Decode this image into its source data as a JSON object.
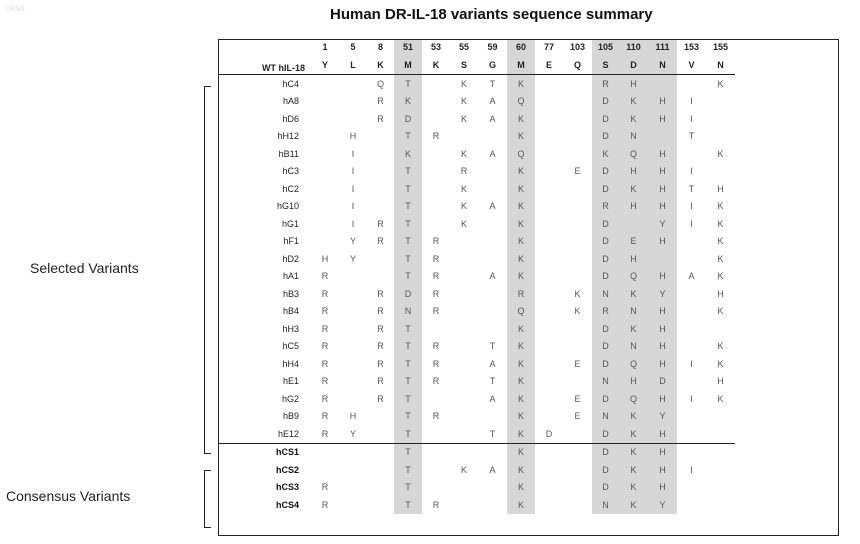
{
  "title": "Human DR-IL-18 variants sequence summary",
  "corner_mark": "SBSS",
  "groups": {
    "selected": "Selected Variants",
    "consensus": "Consensus Variants"
  },
  "header": {
    "label": "WT hIL-18",
    "positions": [
      {
        "num": "1",
        "aa": "Y"
      },
      {
        "num": "5",
        "aa": "L"
      },
      {
        "num": "8",
        "aa": "K"
      },
      {
        "num": "51",
        "aa": "M",
        "hl": true
      },
      {
        "num": "53",
        "aa": "K"
      },
      {
        "num": "55",
        "aa": "S"
      },
      {
        "num": "59",
        "aa": "G"
      },
      {
        "num": "60",
        "aa": "M",
        "hl": true
      },
      {
        "num": "77",
        "aa": "E"
      },
      {
        "num": "103",
        "aa": "Q"
      },
      {
        "num": "105",
        "aa": "S",
        "hl": true
      },
      {
        "num": "110",
        "aa": "D",
        "hl": true
      },
      {
        "num": "111",
        "aa": "N",
        "hl": true
      },
      {
        "num": "153",
        "aa": "V"
      },
      {
        "num": "155",
        "aa": "N"
      }
    ]
  },
  "selected_variants": [
    {
      "name": "hC4",
      "cells": [
        "",
        "",
        "Q",
        "T",
        "",
        "K",
        "T",
        "K",
        "",
        "",
        "R",
        "H",
        "",
        "",
        "K"
      ]
    },
    {
      "name": "hA8",
      "cells": [
        "",
        "",
        "R",
        "K",
        "",
        "K",
        "A",
        "Q",
        "",
        "",
        "D",
        "K",
        "H",
        "I",
        ""
      ]
    },
    {
      "name": "hD6",
      "cells": [
        "",
        "",
        "R",
        "D",
        "",
        "K",
        "A",
        "K",
        "",
        "",
        "D",
        "K",
        "H",
        "I",
        ""
      ]
    },
    {
      "name": "hH12",
      "cells": [
        "",
        "H",
        "",
        "T",
        "R",
        "",
        "",
        "K",
        "",
        "",
        "D",
        "N",
        "",
        "T",
        ""
      ]
    },
    {
      "name": "hB11",
      "cells": [
        "",
        "I",
        "",
        "K",
        "",
        "K",
        "A",
        "Q",
        "",
        "",
        "K",
        "Q",
        "H",
        "",
        "K"
      ]
    },
    {
      "name": "hC3",
      "cells": [
        "",
        "I",
        "",
        "T",
        "",
        "R",
        "",
        "K",
        "",
        "E",
        "D",
        "H",
        "H",
        "I",
        ""
      ]
    },
    {
      "name": "hC2",
      "cells": [
        "",
        "I",
        "",
        "T",
        "",
        "K",
        "",
        "K",
        "",
        "",
        "D",
        "K",
        "H",
        "T",
        "H"
      ]
    },
    {
      "name": "hG10",
      "cells": [
        "",
        "I",
        "",
        "T",
        "",
        "K",
        "A",
        "K",
        "",
        "",
        "R",
        "H",
        "H",
        "I",
        "K"
      ]
    },
    {
      "name": "hG1",
      "cells": [
        "",
        "I",
        "R",
        "T",
        "",
        "K",
        "",
        "K",
        "",
        "",
        "D",
        "",
        "Y",
        "I",
        "K"
      ]
    },
    {
      "name": "hF1",
      "cells": [
        "",
        "Y",
        "R",
        "T",
        "R",
        "",
        "",
        "K",
        "",
        "",
        "D",
        "E",
        "H",
        "",
        "K"
      ]
    },
    {
      "name": "hD2",
      "cells": [
        "H",
        "Y",
        "",
        "T",
        "R",
        "",
        "",
        "K",
        "",
        "",
        "D",
        "H",
        "",
        "",
        "K"
      ]
    },
    {
      "name": "hA1",
      "cells": [
        "R",
        "",
        "",
        "T",
        "R",
        "",
        "A",
        "K",
        "",
        "",
        "D",
        "Q",
        "H",
        "A",
        "K"
      ]
    },
    {
      "name": "hB3",
      "cells": [
        "R",
        "",
        "R",
        "D",
        "R",
        "",
        "",
        "R",
        "",
        "K",
        "N",
        "K",
        "Y",
        "",
        "H"
      ]
    },
    {
      "name": "hB4",
      "cells": [
        "R",
        "",
        "R",
        "N",
        "R",
        "",
        "",
        "Q",
        "",
        "K",
        "R",
        "N",
        "H",
        "",
        "K"
      ]
    },
    {
      "name": "hH3",
      "cells": [
        "R",
        "",
        "R",
        "T",
        "",
        "",
        "",
        "K",
        "",
        "",
        "D",
        "K",
        "H",
        "",
        ""
      ]
    },
    {
      "name": "hC5",
      "cells": [
        "R",
        "",
        "R",
        "T",
        "R",
        "",
        "T",
        "K",
        "",
        "",
        "D",
        "N",
        "H",
        "",
        "K"
      ]
    },
    {
      "name": "hH4",
      "cells": [
        "R",
        "",
        "R",
        "T",
        "R",
        "",
        "A",
        "K",
        "",
        "E",
        "D",
        "Q",
        "H",
        "I",
        "K"
      ]
    },
    {
      "name": "hE1",
      "cells": [
        "R",
        "",
        "R",
        "T",
        "R",
        "",
        "T",
        "K",
        "",
        "",
        "N",
        "H",
        "D",
        "",
        "H"
      ]
    },
    {
      "name": "hG2",
      "cells": [
        "R",
        "",
        "R",
        "T",
        "",
        "",
        "A",
        "K",
        "",
        "E",
        "D",
        "Q",
        "H",
        "I",
        "K"
      ]
    },
    {
      "name": "hB9",
      "cells": [
        "R",
        "H",
        "",
        "T",
        "R",
        "",
        "",
        "K",
        "",
        "E",
        "N",
        "K",
        "Y",
        "",
        ""
      ]
    },
    {
      "name": "hE12",
      "cells": [
        "R",
        "Y",
        "",
        "T",
        "",
        "",
        "T",
        "K",
        "D",
        "",
        "D",
        "K",
        "H",
        "",
        ""
      ]
    }
  ],
  "consensus_variants": [
    {
      "name": "hCS1",
      "cells": [
        "",
        "",
        "",
        "T",
        "",
        "",
        "",
        "K",
        "",
        "",
        "D",
        "K",
        "H",
        "",
        ""
      ]
    },
    {
      "name": "hCS2",
      "cells": [
        "",
        "",
        "",
        "T",
        "",
        "K",
        "A",
        "K",
        "",
        "",
        "D",
        "K",
        "H",
        "I",
        ""
      ]
    },
    {
      "name": "hCS3",
      "cells": [
        "R",
        "",
        "",
        "T",
        "",
        "",
        "",
        "K",
        "",
        "",
        "D",
        "K",
        "H",
        "",
        ""
      ]
    },
    {
      "name": "hCS4",
      "cells": [
        "R",
        "",
        "",
        "T",
        "R",
        "",
        "",
        "K",
        "",
        "",
        "N",
        "K",
        "Y",
        "",
        ""
      ]
    }
  ]
}
